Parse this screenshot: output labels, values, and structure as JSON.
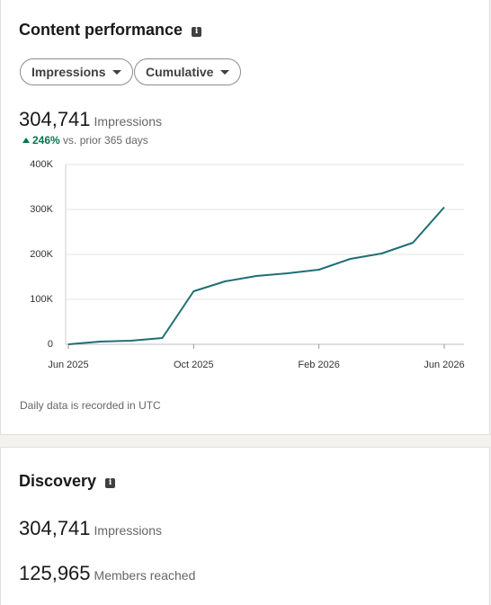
{
  "header": {
    "title": "Content performance"
  },
  "controls": {
    "metric": "Impressions",
    "mode": "Cumulative"
  },
  "summary": {
    "value": "304,741",
    "unit": "Impressions",
    "change": "246%",
    "comparison": "vs. prior 365 days"
  },
  "chart_data": {
    "type": "line",
    "categories": [
      "Jun 2025",
      null,
      null,
      null,
      "Oct 2025",
      null,
      null,
      null,
      "Feb 2026",
      null,
      null,
      null,
      "Jun 2026"
    ],
    "series": [
      {
        "name": "Impressions",
        "color": "#1f6e75",
        "values": [
          0,
          6000,
          8000,
          14000,
          118000,
          140000,
          152000,
          158000,
          166000,
          190000,
          202000,
          226000,
          305000
        ]
      }
    ],
    "ylim": [
      0,
      400000
    ],
    "yticks": [
      0,
      {
        "value": 100000,
        "label": "100K"
      },
      {
        "value": 200000,
        "label": "200K"
      },
      {
        "value": 300000,
        "label": "300K"
      },
      {
        "value": 400000,
        "label": "400K"
      }
    ],
    "grid": true
  },
  "footnote": "Daily data is recorded in UTC",
  "discovery": {
    "title": "Discovery",
    "impressions": "304,741",
    "impressions_label": "Impressions",
    "members": "125,965",
    "members_label": "Members reached"
  }
}
